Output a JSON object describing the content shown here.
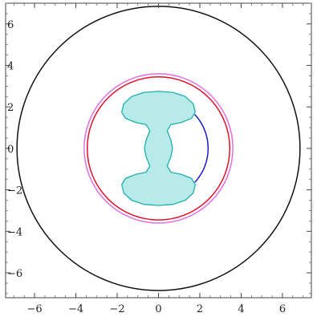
{
  "chart_data": {
    "type": "line",
    "title": "",
    "xlabel": "",
    "ylabel": "",
    "xlim": [
      -7.4,
      7.4
    ],
    "ylim": [
      -7.2,
      7.0
    ],
    "grid": false,
    "aspect": "equal",
    "x_ticks": [
      -6,
      -4,
      -2,
      0,
      2,
      4,
      6
    ],
    "x_tick_labels": [
      "−6",
      "−4",
      "−2",
      "0",
      "2",
      "4",
      "6"
    ],
    "y_ticks": [
      6,
      4,
      2,
      0,
      -2,
      -4,
      -6
    ],
    "y_tick_labels": [
      "6",
      "4",
      "2",
      "0",
      "−2",
      "−4",
      "−6"
    ],
    "series": [
      {
        "kind": "circle",
        "center": [
          0,
          0
        ],
        "radius": 6.85,
        "color": "#111111"
      },
      {
        "kind": "circle",
        "center": [
          0,
          0
        ],
        "radius": 3.6,
        "color": "#e070e0"
      },
      {
        "kind": "circle",
        "center": [
          0,
          0
        ],
        "radius": 3.45,
        "color": "#e0102a"
      },
      {
        "kind": "arc",
        "center": [
          0,
          0
        ],
        "radius": 2.4,
        "start_deg": -43,
        "end_deg": 43,
        "color": "#1a1acc"
      },
      {
        "kind": "filled_region",
        "fill": "#b8eaea",
        "stroke": "#1cb0b0",
        "points": [
          [
            0,
            2.75
          ],
          [
            0.7,
            2.7
          ],
          [
            1.3,
            2.5
          ],
          [
            1.68,
            2.15
          ],
          [
            1.78,
            1.75
          ],
          [
            1.6,
            1.45
          ],
          [
            1.1,
            1.25
          ],
          [
            0.6,
            1.15
          ],
          [
            0.42,
            0.85
          ],
          [
            0.6,
            0.4
          ],
          [
            0.68,
            0
          ],
          [
            0.6,
            -0.4
          ],
          [
            0.42,
            -0.85
          ],
          [
            0.6,
            -1.15
          ],
          [
            1.1,
            -1.25
          ],
          [
            1.6,
            -1.45
          ],
          [
            1.78,
            -1.75
          ],
          [
            1.68,
            -2.15
          ],
          [
            1.3,
            -2.5
          ],
          [
            0.7,
            -2.7
          ],
          [
            0,
            -2.75
          ],
          [
            -0.7,
            -2.7
          ],
          [
            -1.3,
            -2.5
          ],
          [
            -1.68,
            -2.15
          ],
          [
            -1.78,
            -1.75
          ],
          [
            -1.6,
            -1.45
          ],
          [
            -1.1,
            -1.25
          ],
          [
            -0.6,
            -1.15
          ],
          [
            -0.42,
            -0.85
          ],
          [
            -0.6,
            -0.4
          ],
          [
            -0.68,
            0
          ],
          [
            -0.6,
            0.4
          ],
          [
            -0.42,
            0.85
          ],
          [
            -0.6,
            1.15
          ],
          [
            -1.1,
            1.25
          ],
          [
            -1.6,
            1.45
          ],
          [
            -1.78,
            1.75
          ],
          [
            -1.68,
            2.15
          ],
          [
            -1.3,
            2.5
          ],
          [
            -0.7,
            2.7
          ]
        ]
      }
    ]
  }
}
